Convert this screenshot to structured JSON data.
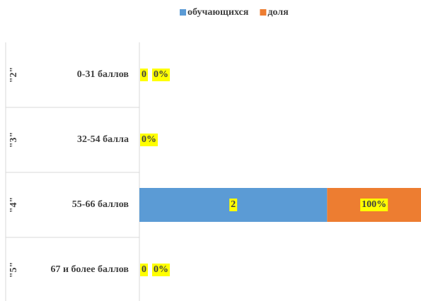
{
  "chart_data": {
    "type": "bar",
    "orientation": "horizontal",
    "stacked": true,
    "groups": [
      "\"2\"",
      "\"3\"",
      "\"4\"",
      "\"5\""
    ],
    "categories": [
      "0-31 баллов",
      "32-54 балла",
      "55-66 баллов",
      "67 и более баллов"
    ],
    "series": [
      {
        "name": "обучающихся",
        "color": "#5b9bd5",
        "values": [
          0,
          0,
          2,
          0
        ],
        "value_labels": [
          "0",
          null,
          "2",
          "0"
        ]
      },
      {
        "name": "доля",
        "color": "#ed7d31",
        "values": [
          0,
          0,
          1,
          0
        ],
        "value_labels": [
          "0%",
          "0%",
          "100%",
          "0%"
        ]
      }
    ],
    "xlim": [
      0,
      3
    ],
    "legend": "top"
  }
}
